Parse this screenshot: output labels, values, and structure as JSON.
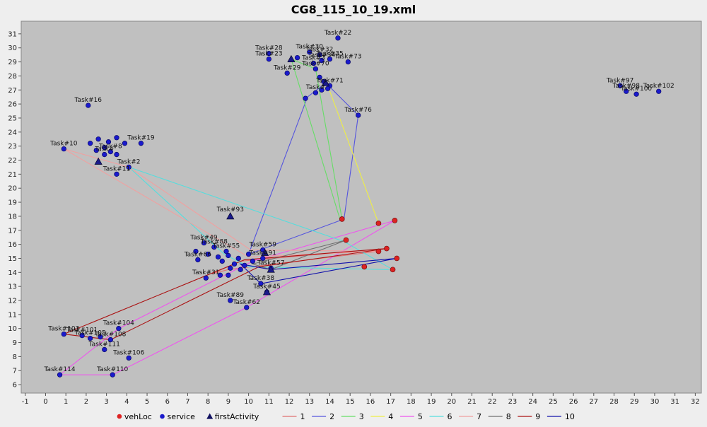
{
  "chart_data": {
    "type": "scatter",
    "title": "CG8_115_10_19.xml",
    "xlabel": "",
    "ylabel": "",
    "xlim": [
      -1.2,
      32.3
    ],
    "ylim": [
      5.4,
      31.9
    ],
    "xticks": [
      -1,
      0,
      1,
      2,
      3,
      4,
      5,
      6,
      7,
      8,
      9,
      10,
      11,
      12,
      13,
      14,
      15,
      16,
      17,
      18,
      19,
      20,
      21,
      22,
      23,
      24,
      25,
      26,
      27,
      28,
      29,
      30,
      31,
      32
    ],
    "yticks": [
      6,
      7,
      8,
      9,
      10,
      11,
      12,
      13,
      14,
      15,
      16,
      17,
      18,
      19,
      20,
      21,
      22,
      23,
      24,
      25,
      26,
      27,
      28,
      29,
      30,
      31
    ],
    "grid": false,
    "plot_background": "#c0c0c0",
    "legend": {
      "placement": "bottom",
      "entries": [
        {
          "label": "vehLoc",
          "kind": "dot",
          "color": "#dd2222"
        },
        {
          "label": "service",
          "kind": "dot",
          "color": "#1a1acc"
        },
        {
          "label": "firstActivity",
          "kind": "triangle",
          "color": "#101060"
        },
        {
          "label": "1",
          "kind": "line",
          "color": "#e07070"
        },
        {
          "label": "2",
          "kind": "line",
          "color": "#5555dd"
        },
        {
          "label": "3",
          "kind": "line",
          "color": "#66dd66"
        },
        {
          "label": "4",
          "kind": "line",
          "color": "#eeee44"
        },
        {
          "label": "5",
          "kind": "line",
          "color": "#ee55ee"
        },
        {
          "label": "6",
          "kind": "line",
          "color": "#55dddd"
        },
        {
          "label": "7",
          "kind": "line",
          "color": "#f0a0a0"
        },
        {
          "label": "8",
          "kind": "line",
          "color": "#707070"
        },
        {
          "label": "9",
          "kind": "line",
          "color": "#aa1111"
        },
        {
          "label": "10",
          "kind": "line",
          "color": "#1111aa"
        }
      ]
    },
    "vehLoc": [
      {
        "x": 14.6,
        "y": 17.8
      },
      {
        "x": 16.4,
        "y": 17.5
      },
      {
        "x": 17.2,
        "y": 17.7
      },
      {
        "x": 14.8,
        "y": 16.3
      },
      {
        "x": 16.4,
        "y": 15.5
      },
      {
        "x": 16.8,
        "y": 15.7
      },
      {
        "x": 17.3,
        "y": 15.0
      },
      {
        "x": 15.7,
        "y": 14.4
      },
      {
        "x": 17.1,
        "y": 14.2
      }
    ],
    "service": [
      {
        "label": "Task#22",
        "x": 14.4,
        "y": 30.7
      },
      {
        "label": "Task#23",
        "x": 11.0,
        "y": 29.2
      },
      {
        "label": "Task#28",
        "x": 11.0,
        "y": 29.6
      },
      {
        "label": "",
        "x": 12.4,
        "y": 29.3
      },
      {
        "label": "Task#30",
        "x": 13.0,
        "y": 29.7
      },
      {
        "label": "Task#32",
        "x": 13.5,
        "y": 29.5
      },
      {
        "label": "Task#34",
        "x": 13.6,
        "y": 29.1
      },
      {
        "label": "Task#35",
        "x": 14.0,
        "y": 29.2
      },
      {
        "label": "Task#73",
        "x": 14.9,
        "y": 29.0
      },
      {
        "label": "Task#3",
        "x": 13.2,
        "y": 28.9
      },
      {
        "label": "Task#29",
        "x": 11.9,
        "y": 28.2
      },
      {
        "label": "Task#70",
        "x": 13.3,
        "y": 28.5
      },
      {
        "label": "",
        "x": 13.5,
        "y": 27.9
      },
      {
        "label": "",
        "x": 13.7,
        "y": 27.6
      },
      {
        "label": "Task#71",
        "x": 14.0,
        "y": 27.3
      },
      {
        "label": "",
        "x": 13.6,
        "y": 27.0
      },
      {
        "label": "",
        "x": 13.9,
        "y": 27.1
      },
      {
        "label": "Task#",
        "x": 13.3,
        "y": 26.8
      },
      {
        "label": "",
        "x": 12.8,
        "y": 26.4
      },
      {
        "label": "Task#76",
        "x": 15.4,
        "y": 25.2
      },
      {
        "label": "Task#16",
        "x": 2.1,
        "y": 25.9
      },
      {
        "label": "Task#97",
        "x": 28.3,
        "y": 27.3
      },
      {
        "label": "Task#98",
        "x": 28.6,
        "y": 26.9
      },
      {
        "label": "Task#100",
        "x": 29.1,
        "y": 26.7
      },
      {
        "label": "Task#102",
        "x": 30.2,
        "y": 26.9
      },
      {
        "label": "Task#10",
        "x": 0.9,
        "y": 22.8
      },
      {
        "label": "Task#19",
        "x": 4.7,
        "y": 23.2
      },
      {
        "label": "",
        "x": 2.2,
        "y": 23.2
      },
      {
        "label": "",
        "x": 2.6,
        "y": 23.5
      },
      {
        "label": "",
        "x": 3.1,
        "y": 23.3
      },
      {
        "label": "",
        "x": 3.5,
        "y": 23.6
      },
      {
        "label": "",
        "x": 3.9,
        "y": 23.2
      },
      {
        "label": "",
        "x": 2.9,
        "y": 22.9
      },
      {
        "label": "Task#8",
        "x": 3.2,
        "y": 22.6
      },
      {
        "label": "",
        "x": 2.5,
        "y": 22.7
      },
      {
        "label": "",
        "x": 3.5,
        "y": 22.4
      },
      {
        "label": "Task#",
        "x": 2.9,
        "y": 22.4
      },
      {
        "label": "Task#2",
        "x": 4.1,
        "y": 21.5
      },
      {
        "label": "Task#11",
        "x": 3.5,
        "y": 21.0
      },
      {
        "label": "Task#49",
        "x": 7.8,
        "y": 16.1
      },
      {
        "label": "Task#88",
        "x": 8.3,
        "y": 15.8
      },
      {
        "label": "Task#55",
        "x": 8.9,
        "y": 15.5
      },
      {
        "label": "Task#59",
        "x": 10.7,
        "y": 15.6
      },
      {
        "label": "Task#91",
        "x": 10.7,
        "y": 15.0
      },
      {
        "label": "Task#66",
        "x": 7.5,
        "y": 14.9
      },
      {
        "label": "",
        "x": 7.4,
        "y": 15.5
      },
      {
        "label": "",
        "x": 8.0,
        "y": 15.3
      },
      {
        "label": "",
        "x": 8.5,
        "y": 15.1
      },
      {
        "label": "",
        "x": 8.7,
        "y": 14.8
      },
      {
        "label": "",
        "x": 9.0,
        "y": 15.2
      },
      {
        "label": "",
        "x": 9.3,
        "y": 14.6
      },
      {
        "label": "",
        "x": 9.5,
        "y": 15.0
      },
      {
        "label": "",
        "x": 9.8,
        "y": 14.5
      },
      {
        "label": "",
        "x": 10.0,
        "y": 15.3
      },
      {
        "label": "",
        "x": 10.2,
        "y": 14.8
      },
      {
        "label": "",
        "x": 9.6,
        "y": 14.2
      },
      {
        "label": "",
        "x": 9.1,
        "y": 14.3
      },
      {
        "label": "",
        "x": 8.6,
        "y": 13.8
      },
      {
        "label": "",
        "x": 9.0,
        "y": 13.8
      },
      {
        "label": "Task#31",
        "x": 7.9,
        "y": 13.6
      },
      {
        "label": "Task#57",
        "x": 11.1,
        "y": 14.3
      },
      {
        "label": "Task#38",
        "x": 10.6,
        "y": 13.2
      },
      {
        "label": "Task#89",
        "x": 9.1,
        "y": 12.0
      },
      {
        "label": "Task#62",
        "x": 9.9,
        "y": 11.5
      },
      {
        "label": "Task#45",
        "x": 10.9,
        "y": 12.6
      },
      {
        "label": "Task#104",
        "x": 3.6,
        "y": 10.0
      },
      {
        "label": "Task#103",
        "x": 0.9,
        "y": 9.6
      },
      {
        "label": "Task#101",
        "x": 1.8,
        "y": 9.5
      },
      {
        "label": "Task#105",
        "x": 2.2,
        "y": 9.3
      },
      {
        "label": "",
        "x": 2.7,
        "y": 9.4
      },
      {
        "label": "Task#108",
        "x": 3.2,
        "y": 9.2
      },
      {
        "label": "Task#111",
        "x": 2.9,
        "y": 8.5
      },
      {
        "label": "Task#106",
        "x": 4.1,
        "y": 7.9
      },
      {
        "label": "Task#114",
        "x": 0.7,
        "y": 6.7
      },
      {
        "label": "Task#110",
        "x": 3.3,
        "y": 6.7
      }
    ],
    "firstActivity": [
      {
        "label": "",
        "x": 12.1,
        "y": 29.2
      },
      {
        "label": "",
        "x": 13.8,
        "y": 27.5
      },
      {
        "label": "",
        "x": 2.6,
        "y": 21.9
      },
      {
        "label": "Task#93",
        "x": 9.1,
        "y": 18.0
      },
      {
        "label": "",
        "x": 10.8,
        "y": 15.4
      },
      {
        "label": "",
        "x": 11.1,
        "y": 14.2
      },
      {
        "label": "",
        "x": 10.9,
        "y": 12.6
      }
    ],
    "series": [
      {
        "name": "1",
        "color": "#e07070",
        "points": [
          [
            16.8,
            15.7
          ],
          [
            9.6,
            14.8
          ],
          [
            8.2,
            13.9
          ],
          [
            9.0,
            14.2
          ],
          [
            16.4,
            15.5
          ]
        ]
      },
      {
        "name": "2",
        "color": "#5555dd",
        "points": [
          [
            15.4,
            25.2
          ],
          [
            14.7,
            17.8
          ],
          [
            10.0,
            15.3
          ],
          [
            12.9,
            26.5
          ],
          [
            13.8,
            27.5
          ],
          [
            15.4,
            25.2
          ]
        ]
      },
      {
        "name": "3",
        "color": "#66dd66",
        "points": [
          [
            14.5,
            17.8
          ],
          [
            12.1,
            29.2
          ],
          [
            13.3,
            28.5
          ],
          [
            14.6,
            17.8
          ]
        ]
      },
      {
        "name": "4",
        "color": "#eeee44",
        "points": [
          [
            16.4,
            17.5
          ],
          [
            13.9,
            27.3
          ]
        ]
      },
      {
        "name": "5",
        "color": "#ee55ee",
        "points": [
          [
            17.2,
            17.7
          ],
          [
            9.9,
            11.5
          ],
          [
            3.3,
            6.7
          ],
          [
            0.7,
            6.7
          ],
          [
            3.6,
            10.0
          ],
          [
            10.2,
            14.8
          ],
          [
            17.2,
            17.7
          ]
        ]
      },
      {
        "name": "6",
        "color": "#55dddd",
        "points": [
          [
            16.9,
            14.2
          ],
          [
            10.0,
            14.4
          ],
          [
            8.8,
            15.3
          ],
          [
            4.1,
            21.5
          ],
          [
            14.7,
            16.2
          ],
          [
            17.1,
            14.2
          ]
        ]
      },
      {
        "name": "7",
        "color": "#f0a0a0",
        "points": [
          [
            16.4,
            15.5
          ],
          [
            10.0,
            15.1
          ],
          [
            0.9,
            22.8
          ],
          [
            4.1,
            21.5
          ],
          [
            10.1,
            15.6
          ],
          [
            16.4,
            15.5
          ]
        ]
      },
      {
        "name": "8",
        "color": "#707070",
        "points": [
          [
            14.8,
            16.3
          ],
          [
            10.2,
            14.6
          ],
          [
            11.1,
            14.2
          ],
          [
            14.8,
            16.3
          ]
        ]
      },
      {
        "name": "9",
        "color": "#aa1111",
        "points": [
          [
            16.8,
            15.7
          ],
          [
            9.8,
            14.9
          ],
          [
            0.9,
            9.6
          ],
          [
            3.2,
            9.2
          ],
          [
            10.5,
            14.4
          ],
          [
            16.8,
            15.7
          ]
        ]
      },
      {
        "name": "10",
        "color": "#1111aa",
        "points": [
          [
            17.3,
            15.0
          ],
          [
            11.1,
            14.2
          ],
          [
            9.6,
            14.6
          ],
          [
            10.6,
            13.2
          ],
          [
            17.3,
            15.0
          ]
        ]
      }
    ]
  }
}
